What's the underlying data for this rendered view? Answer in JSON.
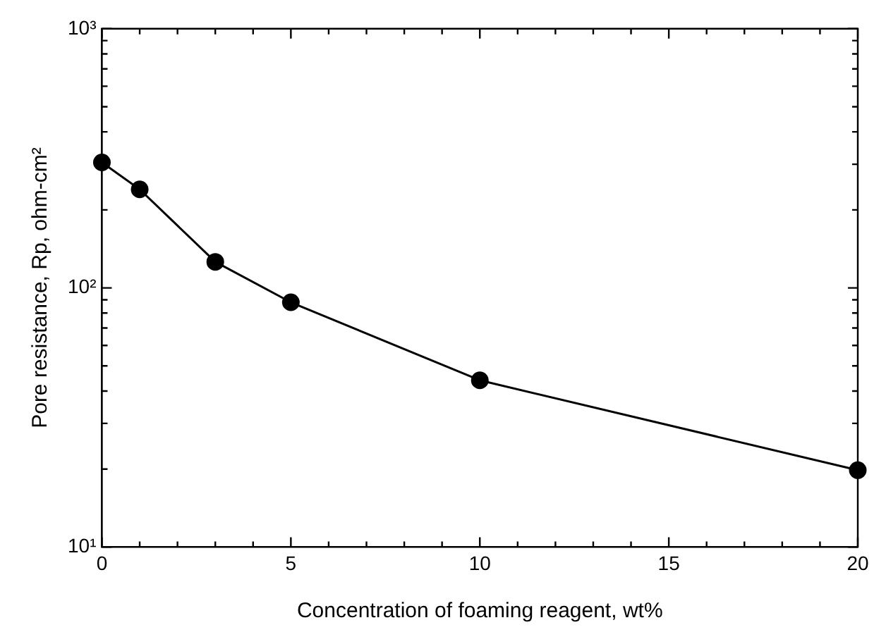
{
  "chart_data": {
    "type": "line",
    "xlabel": "Concentration of foaming reagent, wt%",
    "ylabel": "Pore resistance, Rp, ohm-cm²",
    "x": [
      0,
      1,
      3,
      5,
      10,
      20
    ],
    "series": [
      {
        "color": "#000000",
        "values": [
          305,
          240,
          126,
          88,
          44,
          19.8
        ]
      }
    ],
    "xlim": [
      0,
      20
    ],
    "ylim": [
      10,
      1000
    ],
    "log": "y",
    "marker": "circle",
    "line_style": "solid",
    "xticks": [
      0,
      {
        "value": 1,
        "label": null
      },
      {
        "value": 2,
        "label": null
      },
      {
        "value": 3,
        "label": null
      },
      {
        "value": 4,
        "label": null
      },
      5,
      {
        "value": 6,
        "label": null
      },
      {
        "value": 7,
        "label": null
      },
      {
        "value": 8,
        "label": null
      },
      {
        "value": 9,
        "label": null
      },
      10,
      {
        "value": 11,
        "label": null
      },
      {
        "value": 12,
        "label": null
      },
      {
        "value": 13,
        "label": null
      },
      {
        "value": 14,
        "label": null
      },
      15,
      {
        "value": 16,
        "label": null
      },
      {
        "value": 17,
        "label": null
      },
      {
        "value": 18,
        "label": null
      },
      {
        "value": 19,
        "label": null
      },
      20
    ],
    "yticks": [
      {
        "value": 10,
        "label": "10¹"
      },
      {
        "value": 20,
        "label": null
      },
      {
        "value": 30,
        "label": null
      },
      {
        "value": 40,
        "label": null
      },
      {
        "value": 50,
        "label": null
      },
      {
        "value": 60,
        "label": null
      },
      {
        "value": 70,
        "label": null
      },
      {
        "value": 80,
        "label": null
      },
      {
        "value": 90,
        "label": null
      },
      {
        "value": 100,
        "label": "10²"
      },
      {
        "value": 200,
        "label": null
      },
      {
        "value": 300,
        "label": null
      },
      {
        "value": 400,
        "label": null
      },
      {
        "value": 500,
        "label": null
      },
      {
        "value": 600,
        "label": null
      },
      {
        "value": 700,
        "label": null
      },
      {
        "value": 800,
        "label": null
      },
      {
        "value": 900,
        "label": null
      },
      {
        "value": 1000,
        "label": "10³"
      }
    ]
  }
}
